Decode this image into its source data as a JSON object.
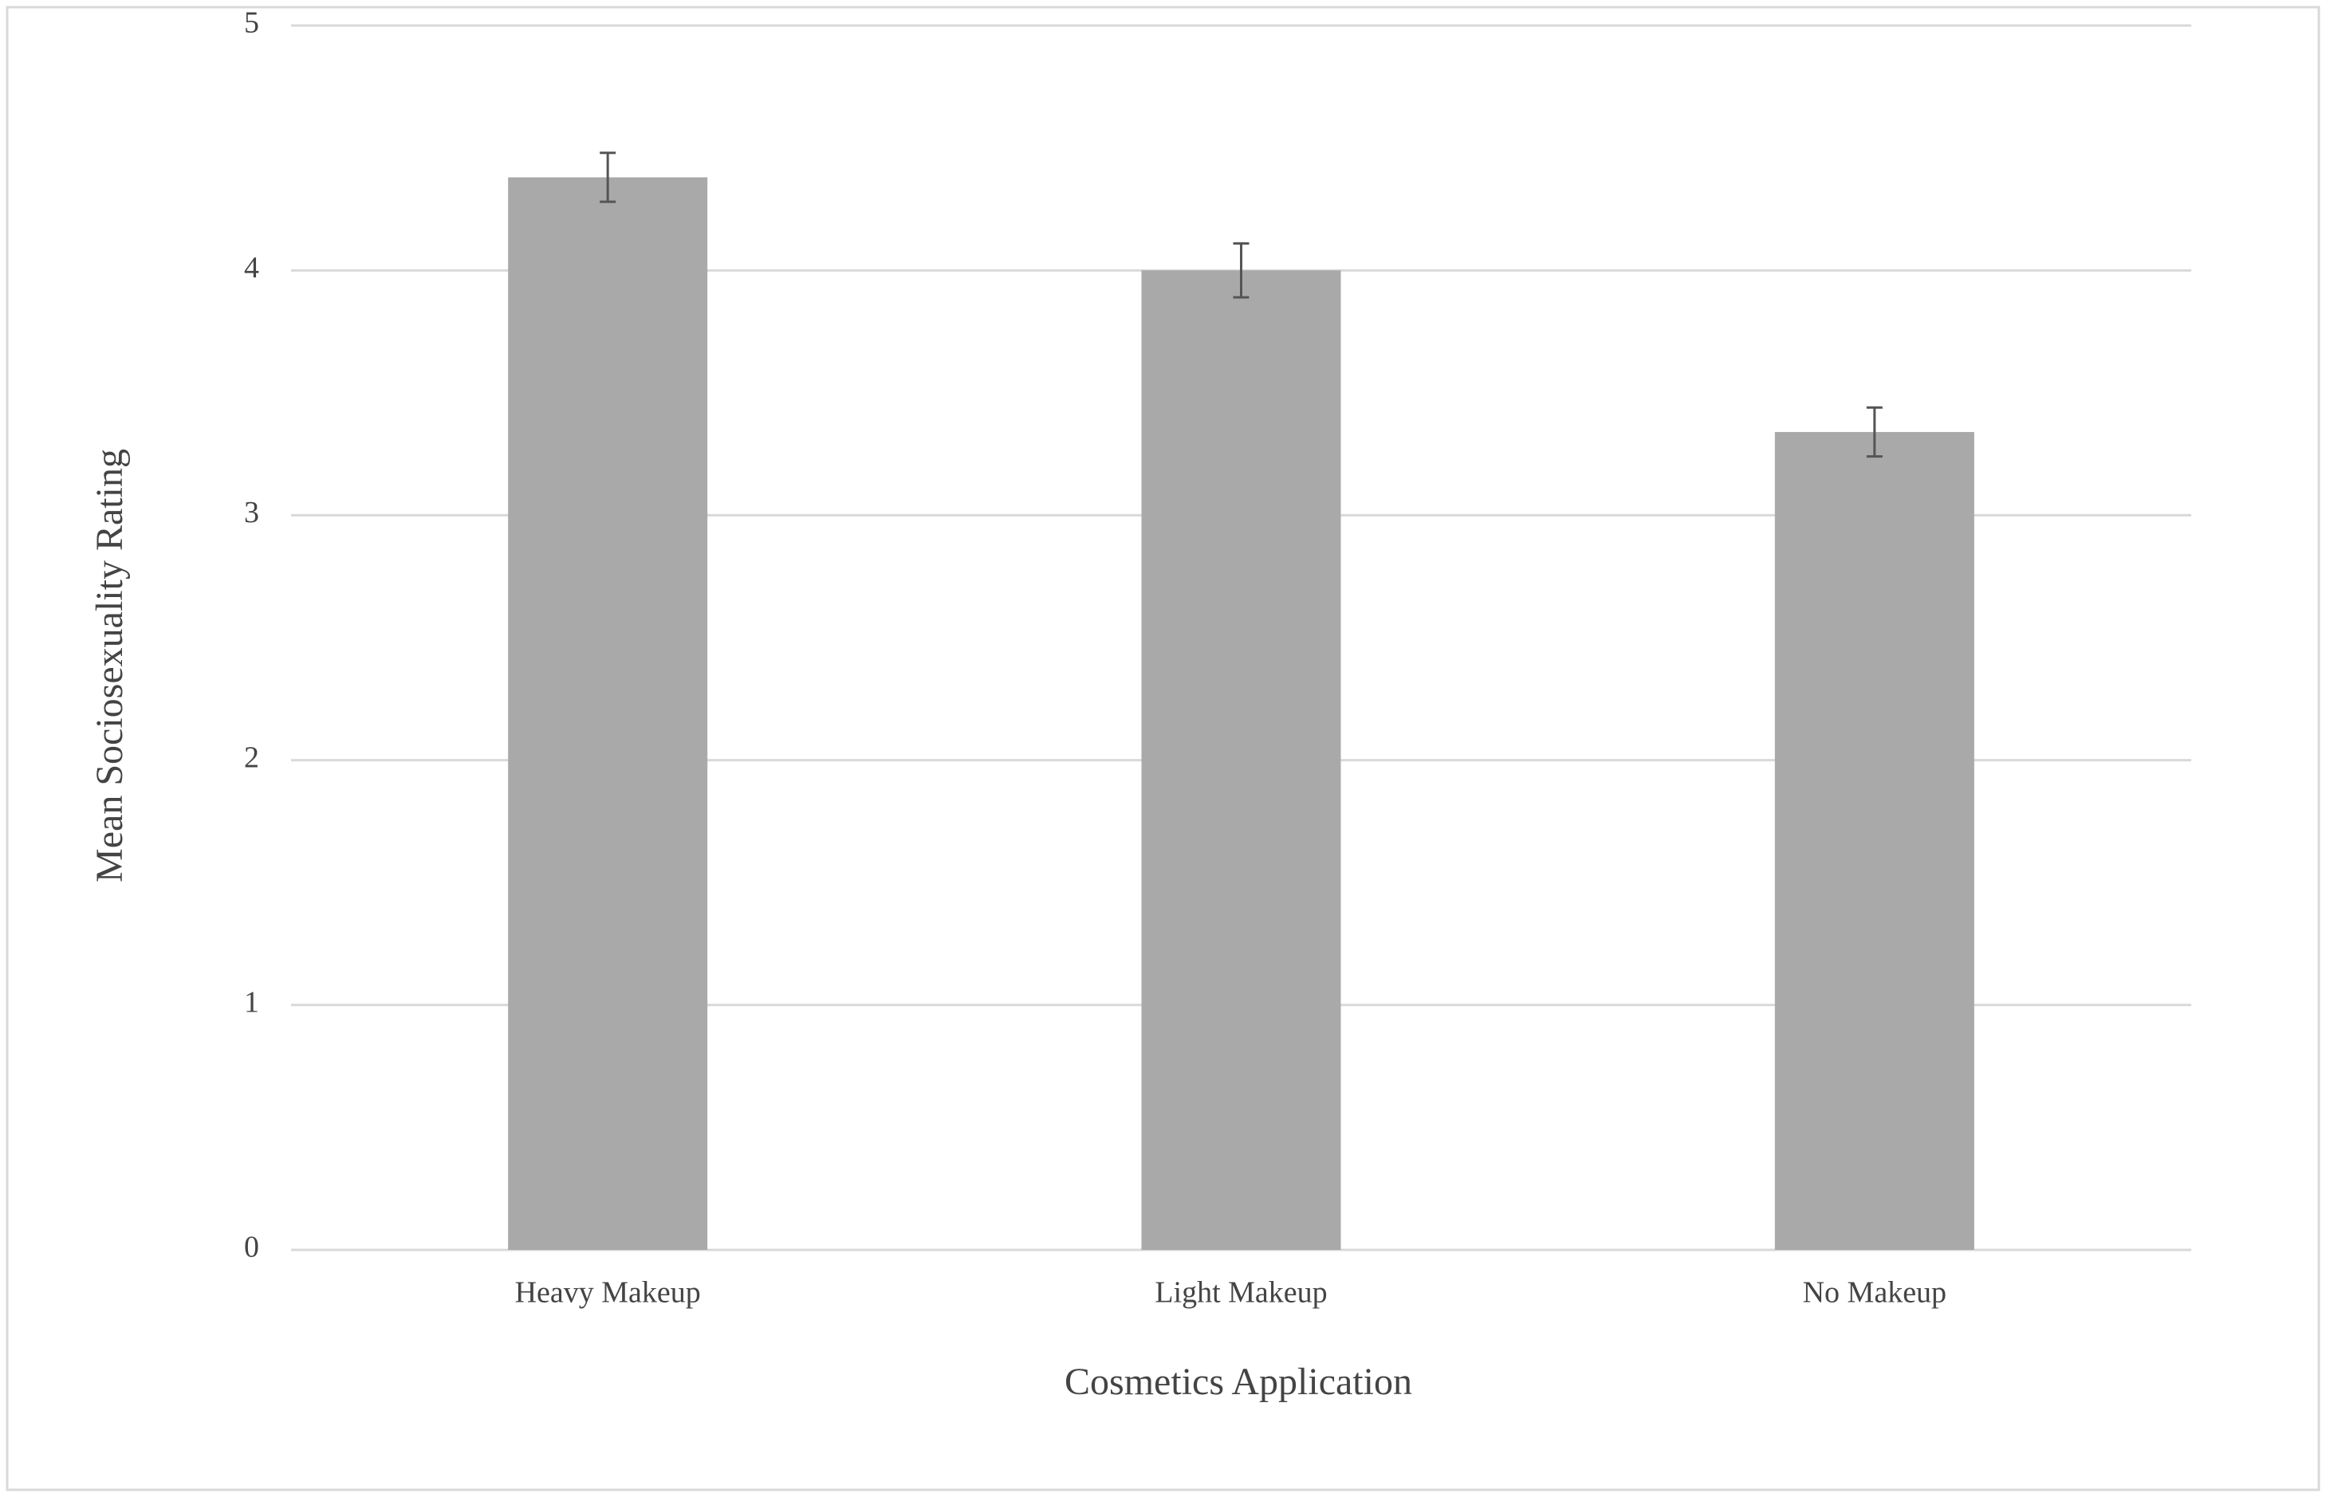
{
  "chart_data": {
    "type": "bar",
    "x_label": "Cosmetics Application",
    "y_label": "Mean Sociosexuality Rating",
    "categories": [
      "Heavy Makeup",
      "Light Makeup",
      "No Makeup"
    ],
    "values": [
      4.38,
      4.0,
      3.34
    ],
    "errors": [
      0.1,
      0.11,
      0.1
    ],
    "color": "#a9a9a9",
    "ylim": [
      0,
      5
    ],
    "yticks": [
      0,
      1,
      2,
      3,
      4,
      5
    ],
    "grid": true
  }
}
